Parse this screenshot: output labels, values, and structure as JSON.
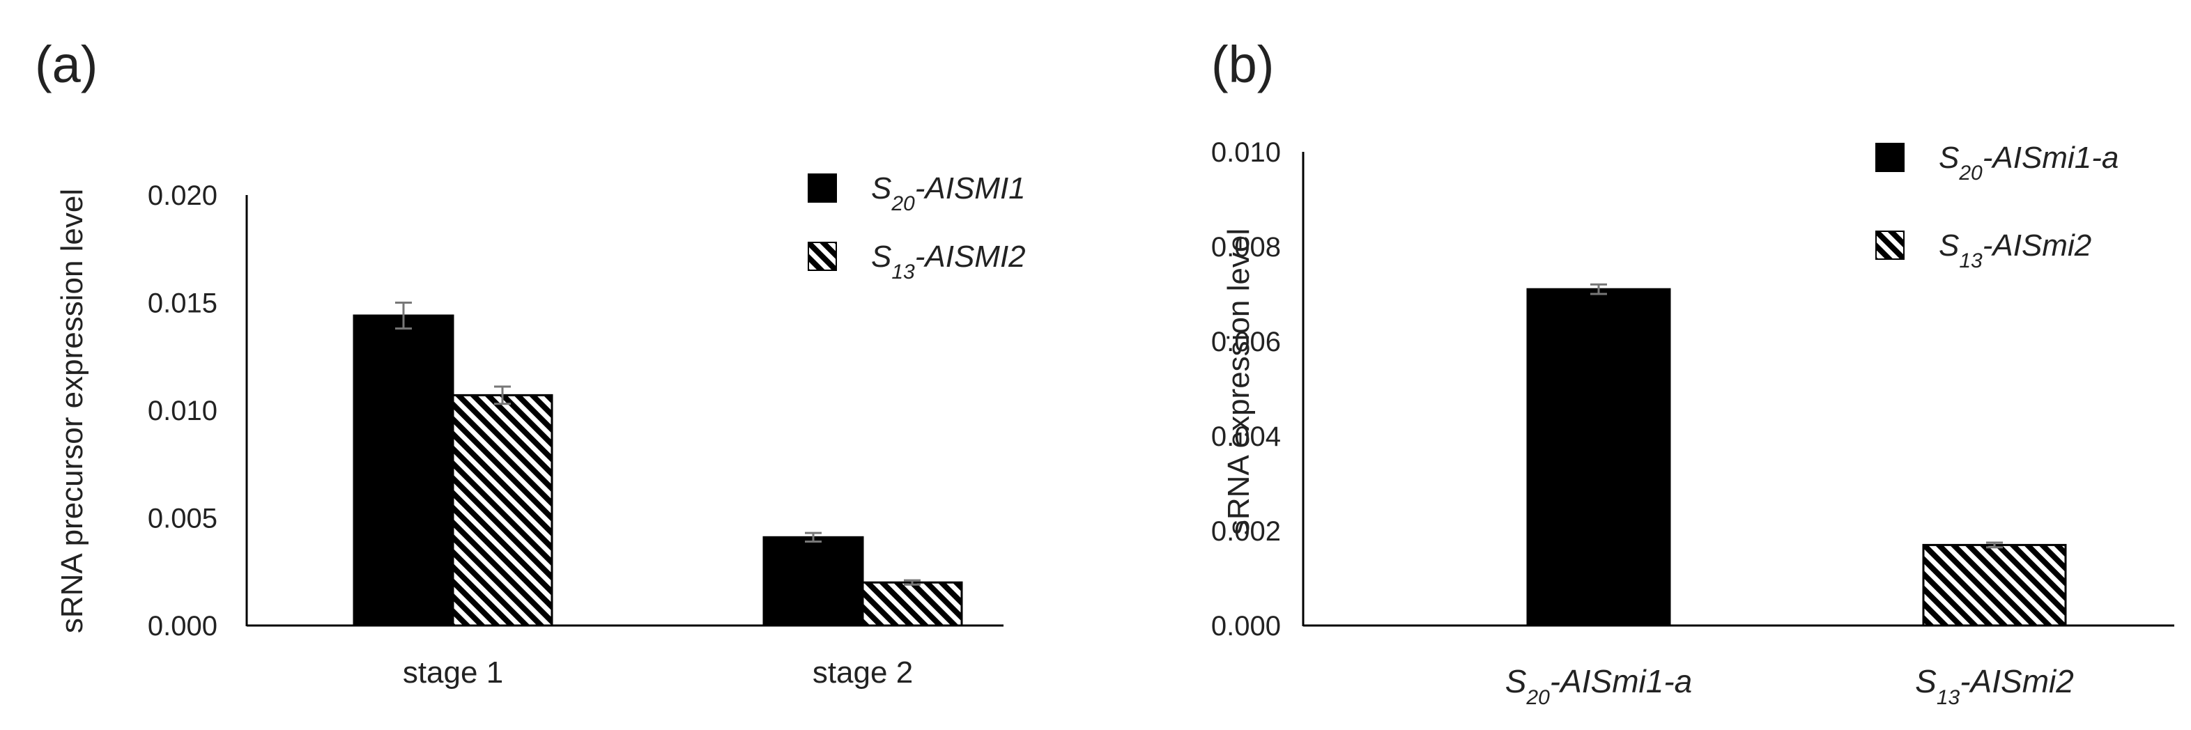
{
  "colors": {
    "solid": "#000000",
    "axis": "#000000",
    "error_bar": "#777777",
    "text": "#222222",
    "hatch_bg": "#ffffff"
  },
  "chart_data": [
    {
      "type": "bar",
      "panel": "(a)",
      "ylabel": "sRNA precursor expression level",
      "xlabel": "",
      "categories": [
        "stage 1",
        "stage 2"
      ],
      "ylim": [
        0,
        0.02
      ],
      "yticks": [
        "0.000",
        "0.005",
        "0.010",
        "0.015",
        "0.020"
      ],
      "legend_position": "top-right",
      "grid": false,
      "series": [
        {
          "name": "S20-AISMI1",
          "name_base": "S",
          "name_sub": "20",
          "name_rest": "-AISMI1",
          "fill": "solid",
          "values": [
            0.0144,
            0.0041
          ],
          "errors": [
            0.0006,
            0.0002
          ]
        },
        {
          "name": "S13-AISMI2",
          "name_base": "S",
          "name_sub": "13",
          "name_rest": "-AISMI2",
          "fill": "hatched",
          "values": [
            0.0107,
            0.002
          ],
          "errors": [
            0.0004,
            0.0001
          ]
        }
      ]
    },
    {
      "type": "bar",
      "panel": "(b)",
      "ylabel": "sRNA expression level",
      "xlabel": "",
      "categories": [
        "S20-AISmi1-a",
        "S13-AISmi2"
      ],
      "category_parts": [
        {
          "base": "S",
          "sub": "20",
          "rest": "-AISmi1-a"
        },
        {
          "base": "S",
          "sub": "13",
          "rest": "-AISmi2"
        }
      ],
      "ylim": [
        0,
        0.01
      ],
      "yticks": [
        "0.000",
        "0.002",
        "0.004",
        "0.006",
        "0.008",
        "0.010"
      ],
      "legend_position": "top-right",
      "grid": false,
      "series": [
        {
          "name": "S20-AISmi1-a",
          "name_base": "S",
          "name_sub": "20",
          "name_rest": "-AISmi1-a",
          "fill": "solid",
          "values": [
            0.0071,
            null
          ],
          "errors": [
            0.0001,
            null
          ]
        },
        {
          "name": "S13-AISmi2",
          "name_base": "S",
          "name_sub": "13",
          "name_rest": "-AISmi2",
          "fill": "hatched",
          "values": [
            null,
            0.0017
          ],
          "errors": [
            null,
            5e-05
          ]
        }
      ]
    }
  ]
}
